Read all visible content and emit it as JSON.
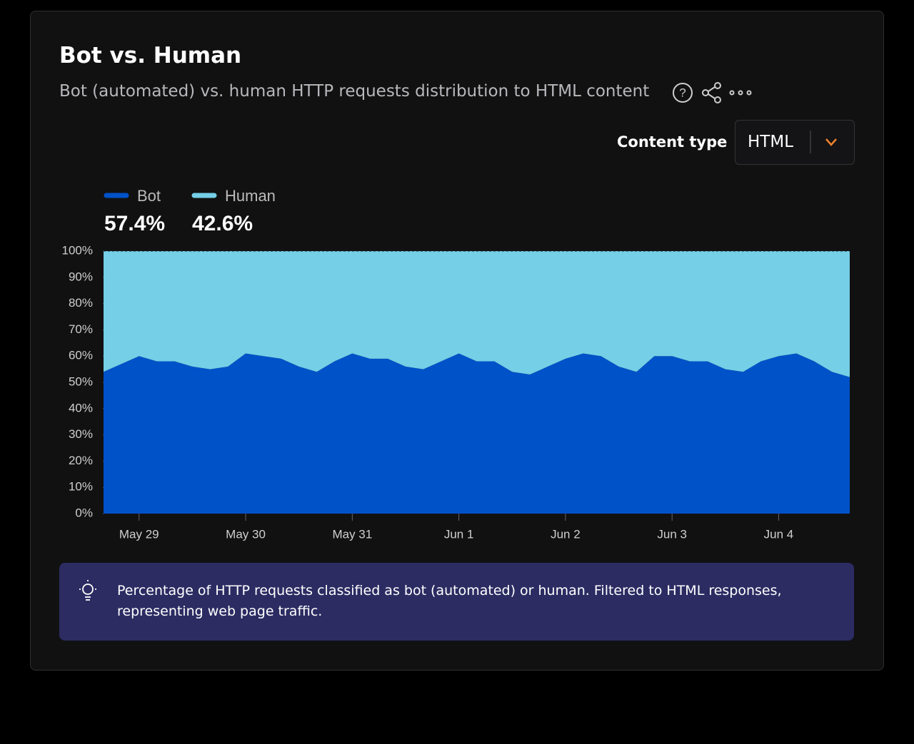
{
  "header": {
    "title": "Bot vs. Human",
    "subtitle": "Bot (automated) vs. human HTTP requests distribution to HTML content"
  },
  "controls": {
    "label": "Content type",
    "selected": "HTML"
  },
  "chart_data": {
    "type": "stacked_area",
    "categories": [
      null,
      null,
      "May 29",
      null,
      null,
      null,
      null,
      null,
      "May 30",
      null,
      null,
      null,
      null,
      null,
      "May 31",
      null,
      null,
      null,
      null,
      null,
      "Jun 1",
      null,
      null,
      null,
      null,
      null,
      "Jun 2",
      null,
      null,
      null,
      null,
      null,
      "Jun 3",
      null,
      null,
      null,
      null,
      null,
      "Jun 4",
      null,
      null,
      null,
      null
    ],
    "series": [
      {
        "name": "Bot",
        "color": "#0052c9",
        "share": "57.4%",
        "values": [
          54,
          57,
          60,
          58,
          58,
          56,
          55,
          56,
          61,
          60,
          59,
          56,
          54,
          58,
          61,
          59,
          59,
          56,
          55,
          58,
          61,
          58,
          58,
          54,
          53,
          56,
          59,
          61,
          60,
          56,
          54,
          60,
          60,
          58,
          58,
          55,
          54,
          58,
          60,
          61,
          58,
          54,
          52
        ]
      },
      {
        "name": "Human",
        "color": "#74cfe7",
        "share": "42.6%",
        "values": [
          46,
          43,
          40,
          42,
          42,
          44,
          45,
          44,
          39,
          40,
          41,
          44,
          46,
          42,
          39,
          41,
          41,
          44,
          45,
          42,
          39,
          42,
          42,
          46,
          47,
          44,
          41,
          39,
          40,
          44,
          46,
          40,
          40,
          42,
          42,
          45,
          46,
          42,
          40,
          39,
          42,
          46,
          48
        ]
      }
    ],
    "ylim": [
      0,
      100
    ],
    "yticks": [
      {
        "value": 0,
        "label": "0%"
      },
      {
        "value": 10,
        "label": "10%"
      },
      {
        "value": 20,
        "label": "20%"
      },
      {
        "value": 30,
        "label": "30%"
      },
      {
        "value": 40,
        "label": "40%"
      },
      {
        "value": 50,
        "label": "50%"
      },
      {
        "value": 60,
        "label": "60%"
      },
      {
        "value": 70,
        "label": "70%"
      },
      {
        "value": 80,
        "label": "80%"
      },
      {
        "value": 90,
        "label": "90%"
      },
      {
        "value": 100,
        "label": "100%"
      }
    ]
  },
  "note": {
    "lines": [
      "Percentage of HTTP requests classified as bot (automated) or human. Filtered to HTML responses,",
      "representing web page traffic."
    ]
  }
}
